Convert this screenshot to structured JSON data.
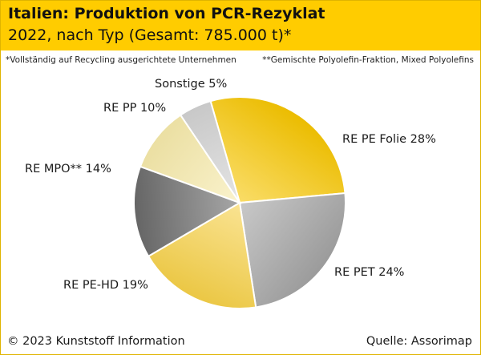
{
  "header": {
    "title": "Italien: Produktion von PCR-Rezyklat",
    "subtitle": "2022, nach Typ (Gesamt: 785.000 t)*"
  },
  "notes": {
    "left": "*Vollständig auf Recycling ausgerichtete Unternehmen",
    "right": "**Gemischte Polyolefin-Fraktion, Mixed Polyolefins"
  },
  "chart_data": {
    "type": "pie",
    "title": "Italien: Produktion von PCR-Rezyklat",
    "subtitle": "2022, nach Typ (Gesamt: 785.000 t)*",
    "unit": "%",
    "slices": [
      {
        "label": "RE PE Folie 28%",
        "name": "RE PE Folie",
        "value": 28,
        "color": "#ffcc00"
      },
      {
        "label": "RE PET 24%",
        "name": "RE PET",
        "value": 24,
        "color": "#a8a8a8"
      },
      {
        "label": "RE PE-HD 19%",
        "name": "RE PE-HD",
        "value": 19,
        "color": "#ffd84a"
      },
      {
        "label": "RE MPO** 14%",
        "name": "RE MPO**",
        "value": 14,
        "color": "#6e6e6e"
      },
      {
        "label": "RE PP 10%",
        "name": "RE PP",
        "value": 10,
        "color": "#fff2b0"
      },
      {
        "label": "Sonstige 5%",
        "name": "Sonstige",
        "value": 5,
        "color": "#d9d9d9"
      }
    ]
  },
  "footer": {
    "copyright": "© 2023 Kunststoff Information",
    "source": "Quelle: Assorimap"
  }
}
